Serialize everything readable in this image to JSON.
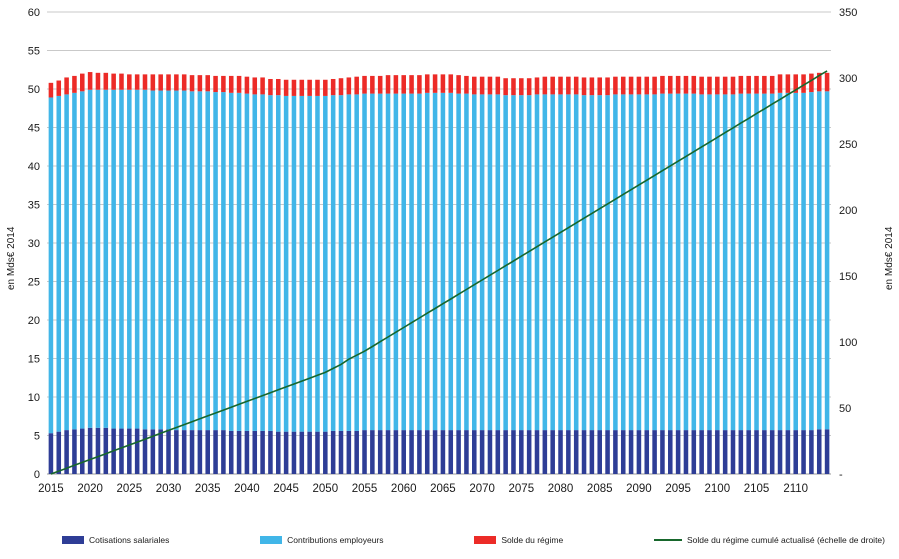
{
  "chart_data": {
    "type": "bar",
    "subtype": "stacked-bar-with-line",
    "title": "",
    "x_start": 2015,
    "x_ticks": [
      "2015",
      "2020",
      "2025",
      "2030",
      "2035",
      "2040",
      "2045",
      "2050",
      "2055",
      "2060",
      "2065",
      "2070",
      "2075",
      "2080",
      "2085",
      "2090",
      "2095",
      "2100",
      "2105",
      "2110"
    ],
    "y_left": {
      "label": "en Mds€ 2014",
      "min": 0,
      "max": 60,
      "tick_step": 5,
      "tick_labels": [
        "0",
        "5",
        "10",
        "15",
        "20",
        "25",
        "30",
        "35",
        "40",
        "45",
        "50",
        "55",
        "60"
      ]
    },
    "y_right": {
      "label": "en Mds€ 2014",
      "min": 0,
      "max": 350,
      "tick_step": 50,
      "tick_labels": [
        "-",
        "50",
        "100",
        "150",
        "200",
        "250",
        "300",
        "350"
      ]
    },
    "grid": true,
    "legend_position": "bottom",
    "colors": {
      "cotisations": "#2e3d96",
      "contributions": "#41b6e8",
      "solde": "#ec2b27",
      "solde_cumule": "#17672c",
      "gridline": "#c9c9c9",
      "axis_line": "#9a9a9a"
    },
    "series": [
      {
        "name": "Cotisations salariales",
        "type": "bar",
        "axis": "left",
        "color": "#2e3d96",
        "values": [
          5.3,
          5.5,
          5.7,
          5.8,
          5.9,
          6.0,
          6.0,
          6.0,
          5.9,
          5.9,
          5.9,
          5.9,
          5.8,
          5.8,
          5.8,
          5.8,
          5.7,
          5.7,
          5.7,
          5.7,
          5.7,
          5.7,
          5.7,
          5.6,
          5.6,
          5.6,
          5.6,
          5.6,
          5.6,
          5.5,
          5.5,
          5.5,
          5.5,
          5.5,
          5.5,
          5.5,
          5.6,
          5.6,
          5.6,
          5.6,
          5.7,
          5.7,
          5.7,
          5.7,
          5.7,
          5.7,
          5.7,
          5.7,
          5.7,
          5.7,
          5.7,
          5.7,
          5.7,
          5.7,
          5.7,
          5.7,
          5.7,
          5.7,
          5.7,
          5.7,
          5.7,
          5.7,
          5.7,
          5.7,
          5.7,
          5.7,
          5.7,
          5.7,
          5.7,
          5.7,
          5.7,
          5.7,
          5.7,
          5.7,
          5.7,
          5.7,
          5.7,
          5.7,
          5.7,
          5.7,
          5.7,
          5.7,
          5.7,
          5.7,
          5.7,
          5.7,
          5.7,
          5.7,
          5.7,
          5.7,
          5.7,
          5.7,
          5.7,
          5.7,
          5.7,
          5.7,
          5.7,
          5.7,
          5.8,
          5.8
        ]
      },
      {
        "name": "Contributions employeurs",
        "type": "bar",
        "axis": "left",
        "color": "#41b6e8",
        "values": [
          43.6,
          43.6,
          43.6,
          43.7,
          43.8,
          43.9,
          43.9,
          43.9,
          44.0,
          44.0,
          44.0,
          44.0,
          44.1,
          44.0,
          44.0,
          44.0,
          44.1,
          44.1,
          44.0,
          44.0,
          44.0,
          43.9,
          43.9,
          43.9,
          43.9,
          43.8,
          43.7,
          43.7,
          43.6,
          43.7,
          43.6,
          43.6,
          43.6,
          43.6,
          43.6,
          43.6,
          43.6,
          43.6,
          43.7,
          43.7,
          43.7,
          43.7,
          43.7,
          43.7,
          43.7,
          43.7,
          43.7,
          43.7,
          43.8,
          43.8,
          43.8,
          43.8,
          43.7,
          43.7,
          43.6,
          43.6,
          43.6,
          43.6,
          43.5,
          43.5,
          43.5,
          43.5,
          43.6,
          43.6,
          43.6,
          43.6,
          43.6,
          43.6,
          43.5,
          43.5,
          43.5,
          43.5,
          43.6,
          43.6,
          43.6,
          43.6,
          43.6,
          43.6,
          43.7,
          43.7,
          43.7,
          43.7,
          43.7,
          43.6,
          43.6,
          43.6,
          43.6,
          43.6,
          43.7,
          43.7,
          43.7,
          43.7,
          43.7,
          43.8,
          43.8,
          43.8,
          43.8,
          43.9,
          43.9,
          43.9
        ]
      },
      {
        "name": "Solde du régime",
        "type": "bar",
        "axis": "left",
        "color": "#ec2b27",
        "values": [
          1.9,
          2.0,
          2.2,
          2.2,
          2.3,
          2.3,
          2.2,
          2.2,
          2.1,
          2.1,
          2.0,
          2.0,
          2.0,
          2.1,
          2.1,
          2.1,
          2.1,
          2.1,
          2.1,
          2.1,
          2.1,
          2.1,
          2.1,
          2.2,
          2.2,
          2.2,
          2.2,
          2.2,
          2.1,
          2.1,
          2.1,
          2.1,
          2.1,
          2.1,
          2.1,
          2.1,
          2.1,
          2.2,
          2.2,
          2.3,
          2.3,
          2.3,
          2.3,
          2.4,
          2.4,
          2.4,
          2.4,
          2.4,
          2.4,
          2.4,
          2.4,
          2.4,
          2.4,
          2.3,
          2.3,
          2.3,
          2.3,
          2.3,
          2.2,
          2.2,
          2.2,
          2.2,
          2.2,
          2.3,
          2.3,
          2.3,
          2.3,
          2.3,
          2.3,
          2.3,
          2.3,
          2.3,
          2.3,
          2.3,
          2.3,
          2.3,
          2.3,
          2.3,
          2.3,
          2.3,
          2.3,
          2.3,
          2.3,
          2.3,
          2.3,
          2.3,
          2.3,
          2.3,
          2.3,
          2.3,
          2.3,
          2.3,
          2.3,
          2.4,
          2.4,
          2.4,
          2.4,
          2.4,
          2.4,
          2.4
        ]
      },
      {
        "name": "Solde du régime cumulé actualisé (échelle de droite)",
        "type": "line",
        "axis": "right",
        "color": "#17672c",
        "values": [
          0,
          2.2,
          4.4,
          6.6,
          8.8,
          11,
          13.2,
          15.4,
          17.6,
          19.8,
          22,
          24.2,
          26.4,
          28.6,
          30.8,
          33,
          35.2,
          37.4,
          39.6,
          41.8,
          44,
          46.2,
          48.4,
          50.6,
          52.8,
          55,
          57.2,
          59.4,
          61.6,
          63.8,
          66,
          68.2,
          70.4,
          72.6,
          74.8,
          77,
          80,
          83,
          87,
          90,
          93,
          96.6,
          100.2,
          103.8,
          107.4,
          111,
          114.6,
          118.2,
          121.8,
          125.4,
          129,
          132.6,
          136.2,
          139.8,
          143.4,
          147,
          150.6,
          154.2,
          157.8,
          161.4,
          165,
          168.6,
          172.2,
          175.8,
          179.4,
          183,
          186.6,
          190.2,
          193.8,
          197.4,
          201,
          204.6,
          208.2,
          211.8,
          215.4,
          219,
          222.6,
          226.2,
          229.8,
          233.4,
          237,
          240.6,
          244.2,
          247.8,
          251.4,
          255,
          258.6,
          262.2,
          265.8,
          269.4,
          273,
          276.6,
          280.2,
          283.8,
          287.4,
          291,
          294.6,
          298.2,
          301.8,
          305.4
        ]
      }
    ]
  }
}
